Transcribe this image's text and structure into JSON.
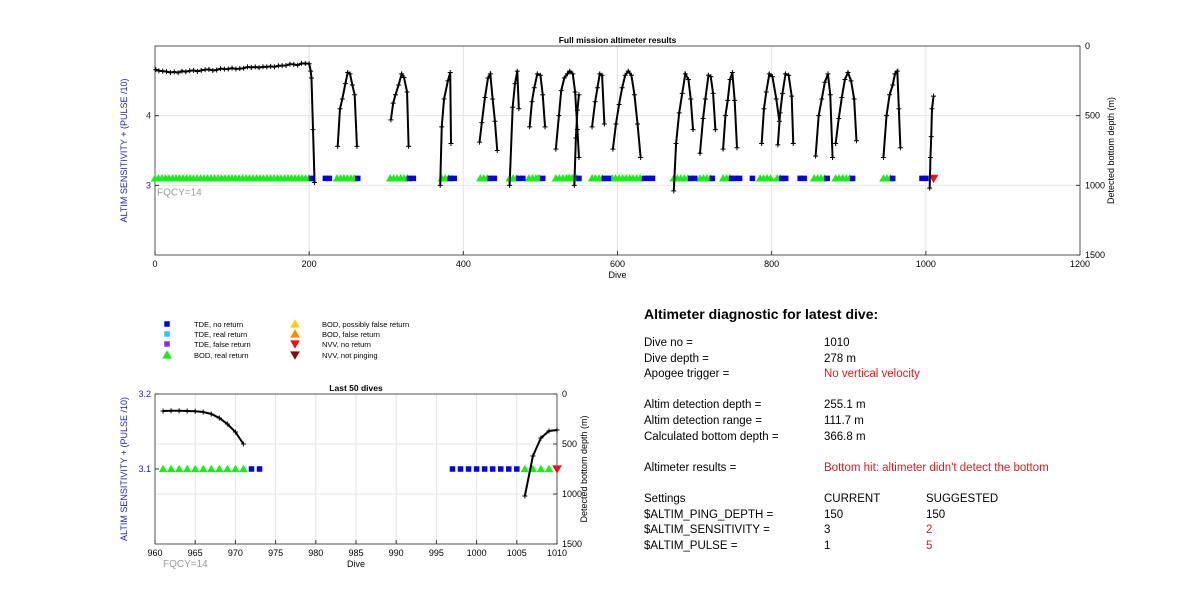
{
  "colors": {
    "tde_no": "#0000e0",
    "tde_real": "#22ccff",
    "tde_false": "#8a2be2",
    "bod_real": "#18ee18",
    "bod_possible": "#ffd000",
    "bod_false": "#ff8c00",
    "nvv_no": "#ee1111",
    "nvv_notping": "#8b0000",
    "line": "#000000",
    "left_axis": "#2222bb",
    "fqcy": "#999999",
    "warn": "#d41f1f"
  },
  "chart_data": [
    {
      "type": "scatter",
      "title": "Full mission altimeter results",
      "xlabel": "Dive",
      "ylabel": "ALTIM SENSITIVITY + (PULSE /10)",
      "y2label": "Detected bottom depth (m)",
      "xlim": [
        0,
        1200
      ],
      "ylim": [
        2,
        5
      ],
      "y2lim": [
        0,
        1500
      ],
      "y2_reversed": true,
      "xticks": [
        0,
        200,
        400,
        600,
        800,
        1000,
        1200
      ],
      "yticks": [
        3,
        4
      ],
      "y2ticks": [
        0,
        500,
        1000,
        1500
      ],
      "grid": true,
      "annotation": "FQCY=14",
      "tde_no_return": [
        [
          203,
          208
        ],
        [
          221,
          231
        ],
        [
          263,
          263
        ],
        [
          330,
          340
        ],
        [
          383,
          393
        ],
        [
          435,
          445
        ],
        [
          472,
          482
        ],
        [
          503,
          508
        ],
        [
          550,
          555
        ],
        [
          583,
          593
        ],
        [
          635,
          650
        ],
        [
          695,
          705
        ],
        [
          723,
          728
        ],
        [
          748,
          763
        ],
        [
          775,
          780
        ],
        [
          813,
          823
        ],
        [
          837,
          847
        ],
        [
          872,
          877
        ],
        [
          905,
          910
        ],
        [
          957,
          962
        ],
        [
          995,
          1005
        ]
      ],
      "bod_real_return": [
        [
          0,
          200
        ],
        [
          236,
          262
        ],
        [
          305,
          329
        ],
        [
          372,
          382
        ],
        [
          422,
          434
        ],
        [
          460,
          471
        ],
        [
          485,
          502
        ],
        [
          497,
          500
        ],
        [
          520,
          548
        ],
        [
          537,
          548
        ],
        [
          541,
          549
        ],
        [
          567,
          582
        ],
        [
          593,
          630
        ],
        [
          673,
          694
        ],
        [
          707,
          722
        ],
        [
          737,
          747
        ],
        [
          785,
          800
        ],
        [
          807,
          812
        ],
        [
          855,
          871
        ],
        [
          883,
          904
        ],
        [
          945,
          955
        ]
      ],
      "nvv_no_return": [
        [
          1010,
          3.1
        ]
      ],
      "depth_series": [
        {
          "x": [
            1,
            5,
            10,
            15,
            20,
            25,
            30,
            35,
            40,
            45,
            50,
            55,
            60,
            65,
            70,
            75,
            80,
            85,
            90,
            95,
            100,
            105,
            110,
            115,
            120,
            125,
            130,
            135,
            140,
            145,
            150,
            155,
            160,
            165,
            170,
            175,
            180,
            185,
            190,
            195,
            200,
            202,
            203,
            205,
            207
          ],
          "y": [
            170,
            178,
            180,
            184,
            190,
            186,
            192,
            180,
            185,
            178,
            175,
            182,
            175,
            170,
            168,
            176,
            172,
            162,
            166,
            165,
            158,
            165,
            162,
            160,
            150,
            154,
            150,
            155,
            149,
            150,
            146,
            150,
            142,
            141,
            140,
            130,
            132,
            138,
            125,
            126,
            127,
            180,
            230,
            600,
            980
          ]
        },
        {
          "x": [
            237,
            240,
            243,
            247,
            250,
            253,
            256,
            259,
            262
          ],
          "y": [
            720,
            450,
            380,
            270,
            190,
            200,
            280,
            350,
            720
          ]
        },
        {
          "x": [
            306,
            309,
            312,
            316,
            320,
            323,
            327,
            329
          ],
          "y": [
            530,
            410,
            350,
            280,
            200,
            225,
            330,
            720
          ]
        },
        {
          "x": [
            370,
            372,
            375,
            380,
            383,
            384
          ],
          "y": [
            1000,
            580,
            380,
            250,
            190,
            700
          ]
        },
        {
          "x": [
            421,
            424,
            428,
            432,
            435,
            438,
            441,
            444
          ],
          "y": [
            690,
            550,
            370,
            230,
            200,
            380,
            540,
            750
          ]
        },
        {
          "x": [
            460,
            464,
            467,
            470,
            472
          ],
          "y": [
            1000,
            440,
            270,
            180,
            450
          ]
        },
        {
          "x": [
            486,
            489,
            492,
            496,
            500,
            503,
            506
          ],
          "y": [
            580,
            400,
            300,
            200,
            210,
            350,
            580
          ]
        },
        {
          "x": [
            520,
            524,
            527,
            531,
            535,
            538,
            542,
            545,
            548,
            550
          ],
          "y": [
            740,
            500,
            320,
            230,
            200,
            180,
            200,
            330,
            600,
            800
          ]
        },
        {
          "x": [
            544,
            546,
            548,
            550
          ],
          "y": [
            1000,
            660,
            460,
            350
          ]
        },
        {
          "x": [
            567,
            571,
            574,
            577,
            580,
            583
          ],
          "y": [
            580,
            400,
            300,
            200,
            210,
            560
          ]
        },
        {
          "x": [
            594,
            598,
            602,
            606,
            610,
            614,
            618,
            622,
            626,
            630
          ],
          "y": [
            740,
            560,
            420,
            300,
            210,
            180,
            210,
            350,
            560,
            800
          ]
        },
        {
          "x": [
            673,
            676,
            680,
            684,
            688,
            692,
            695,
            698
          ],
          "y": [
            1040,
            700,
            480,
            340,
            200,
            240,
            380,
            600
          ]
        },
        {
          "x": [
            707,
            711,
            714,
            718,
            721,
            724,
            727
          ],
          "y": [
            770,
            520,
            380,
            210,
            220,
            340,
            600
          ]
        },
        {
          "x": [
            737,
            740,
            743,
            746,
            749,
            752,
            755
          ],
          "y": [
            740,
            500,
            390,
            240,
            190,
            390,
            730
          ]
        },
        {
          "x": [
            787,
            790,
            793,
            797,
            801,
            806,
            810
          ],
          "y": [
            700,
            450,
            330,
            200,
            220,
            380,
            540
          ]
        },
        {
          "x": [
            808,
            811,
            814,
            818,
            822,
            826,
            828
          ],
          "y": [
            710,
            480,
            340,
            200,
            210,
            360,
            700
          ]
        },
        {
          "x": [
            857,
            861,
            865,
            869,
            873,
            876,
            879
          ],
          "y": [
            790,
            500,
            380,
            260,
            200,
            350,
            800
          ]
        },
        {
          "x": [
            883,
            887,
            891,
            895,
            899,
            903,
            907,
            910
          ],
          "y": [
            700,
            520,
            370,
            240,
            190,
            250,
            380,
            680
          ]
        },
        {
          "x": [
            945,
            949,
            953,
            957,
            960,
            963,
            965,
            967
          ],
          "y": [
            800,
            500,
            350,
            280,
            200,
            180,
            450,
            730
          ]
        },
        {
          "x": [
            1005,
            1006,
            1007,
            1008,
            1010
          ],
          "y": [
            1020,
            800,
            650,
            450,
            360
          ]
        }
      ]
    },
    {
      "type": "scatter",
      "title": "Last 50 dives",
      "xlabel": "Dive",
      "ylabel": "ALTIM SENSITIVITY + (PULSE /10)",
      "y2label": "Detected bottom depth (m)",
      "xlim": [
        960,
        1010
      ],
      "ylim": [
        3.0,
        3.2
      ],
      "y2lim": [
        0,
        1500
      ],
      "y2_reversed": true,
      "xticks": [
        960,
        965,
        970,
        975,
        980,
        985,
        990,
        995,
        1000,
        1005,
        1010
      ],
      "yticks": [
        3.1,
        3.2
      ],
      "y2ticks": [
        0,
        500,
        1000,
        1500
      ],
      "grid": true,
      "annotation": "FQCY=14",
      "tde_no_return": [
        972,
        973,
        997,
        998,
        999,
        1000,
        1001,
        1002,
        1003,
        1004,
        1005
      ],
      "bod_real_return": [
        961,
        962,
        963,
        964,
        965,
        966,
        967,
        968,
        969,
        970,
        971,
        1006,
        1007,
        1008,
        1009
      ],
      "nvv_no_return": [
        1010
      ],
      "depth_series": [
        {
          "x": [
            961,
            962,
            963,
            964,
            965,
            966,
            967,
            968,
            969,
            970,
            971
          ],
          "y": [
            170,
            168,
            168,
            170,
            172,
            180,
            200,
            240,
            300,
            380,
            500
          ]
        },
        {
          "x": [
            1006,
            1007,
            1008,
            1009,
            1010
          ],
          "y": [
            1020,
            620,
            440,
            370,
            360
          ]
        }
      ]
    }
  ],
  "legend": [
    {
      "symbol": "square",
      "color_key": "tde_no",
      "label": "TDE, no return"
    },
    {
      "symbol": "square",
      "color_key": "tde_real",
      "label": "TDE, real return"
    },
    {
      "symbol": "square",
      "color_key": "tde_false",
      "label": "TDE, false return"
    },
    {
      "symbol": "triangle-up",
      "color_key": "bod_real",
      "label": "BOD, real return"
    },
    {
      "symbol": "triangle-up",
      "color_key": "bod_possible",
      "label": "BOD, possibly false return"
    },
    {
      "symbol": "triangle-up",
      "color_key": "bod_false",
      "label": "BOD, false return"
    },
    {
      "symbol": "triangle-down",
      "color_key": "nvv_no",
      "label": "NVV, no return"
    },
    {
      "symbol": "triangle-down",
      "color_key": "nvv_notping",
      "label": "NVV, not pinging"
    }
  ],
  "diagnostic": {
    "title": "Altimeter diagnostic for latest dive:",
    "dive_no_label": "Dive no =",
    "dive_no": "1010",
    "dive_depth_label": "Dive depth =",
    "dive_depth": "278 m",
    "apogee_label": "Apogee trigger =",
    "apogee": "No vertical velocity",
    "altim_det_depth_label": "Altim detection depth =",
    "altim_det_depth": "255.1 m",
    "altim_det_range_label": "Altim detection range =",
    "altim_det_range": "111.7 m",
    "calc_bottom_label": "Calculated bottom depth =",
    "calc_bottom": "366.8 m",
    "results_label": "Altimeter results =",
    "results": "Bottom hit: altimeter didn't detect the bottom",
    "settings_label": "Settings",
    "current_label": "CURRENT",
    "suggested_label": "SUGGESTED",
    "ping_depth_label": "$ALTIM_PING_DEPTH =",
    "ping_depth_current": "150",
    "ping_depth_suggested": "150",
    "sensitivity_label": "$ALTIM_SENSITIVITY =",
    "sensitivity_current": "3",
    "sensitivity_suggested": "2",
    "pulse_label": "$ALTIM_PULSE =",
    "pulse_current": "1",
    "pulse_suggested": "5"
  }
}
